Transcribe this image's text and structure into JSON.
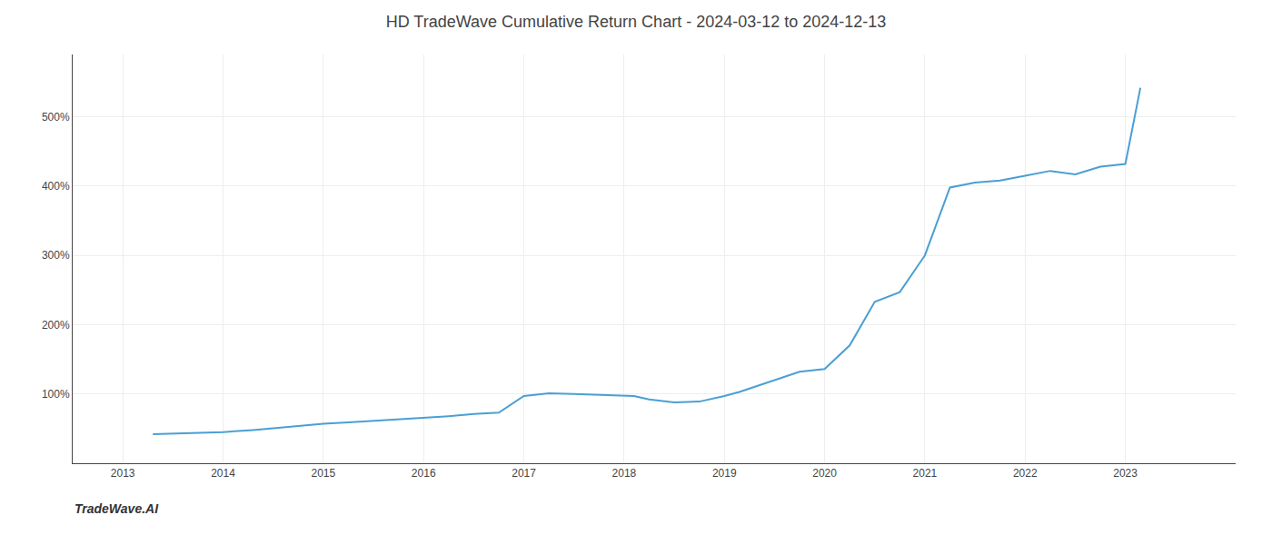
{
  "chart_data": {
    "type": "line",
    "title": "HD TradeWave Cumulative Return Chart - 2024-03-12 to 2024-12-13",
    "annotations": [
      "TradeWave.AI"
    ],
    "x": [
      2013.3,
      2013.5,
      2014.0,
      2014.3,
      2014.7,
      2015.0,
      2015.25,
      2015.5,
      2015.75,
      2016.0,
      2016.25,
      2016.5,
      2016.75,
      2017.0,
      2017.25,
      2017.5,
      2017.75,
      2018.0,
      2018.1,
      2018.25,
      2018.5,
      2018.75,
      2019.0,
      2019.15,
      2019.3,
      2019.5,
      2019.75,
      2020.0,
      2020.25,
      2020.5,
      2020.75,
      2021.0,
      2021.1,
      2021.25,
      2021.5,
      2021.75,
      2022.0,
      2022.25,
      2022.5,
      2022.75,
      2023.0,
      2023.15
    ],
    "values": [
      42,
      43,
      45,
      48,
      53,
      57,
      59,
      61,
      63,
      65,
      68,
      71,
      73,
      97,
      101,
      100,
      99,
      98,
      97,
      92,
      88,
      89,
      97,
      103,
      110,
      120,
      132,
      136,
      170,
      233,
      247,
      300,
      340,
      398,
      405,
      408,
      415,
      422,
      417,
      428,
      432,
      542
    ],
    "color": "#4a9fd4",
    "xlim": [
      2012.5,
      2024.1
    ],
    "xticks": [
      2013,
      2014,
      2015,
      2016,
      2017,
      2018,
      2019,
      2020,
      2021,
      2022,
      2023
    ],
    "ylim": [
      0,
      590
    ],
    "yticks": [
      {
        "value": 100,
        "label": "100%"
      },
      {
        "value": 200,
        "label": "200%"
      },
      {
        "value": 300,
        "label": "300%"
      },
      {
        "value": 400,
        "label": "400%"
      },
      {
        "value": 500,
        "label": "500%"
      }
    ],
    "grid": true
  }
}
